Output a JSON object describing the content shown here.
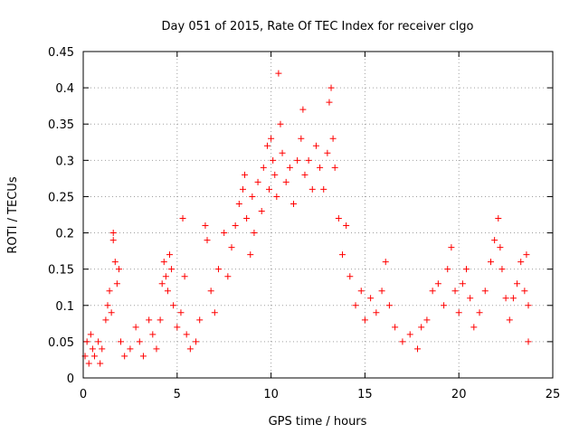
{
  "chart_data": {
    "type": "scatter",
    "title": "Day 051 of 2015, Rate Of TEC Index for receiver clgo",
    "xlabel": "GPS time / hours",
    "ylabel": "ROTI / TECUs",
    "xlim": [
      0,
      25
    ],
    "ylim": [
      0,
      0.45
    ],
    "x_ticks": [
      "0",
      "5",
      "10",
      "15",
      "20",
      "25"
    ],
    "y_ticks": [
      "0",
      "0.05",
      "0.1",
      "0.15",
      "0.2",
      "0.25",
      "0.3",
      "0.35",
      "0.4",
      "0.45"
    ],
    "grid": true,
    "marker": "+",
    "color": "#ff0000",
    "series": [
      {
        "points": [
          [
            0.1,
            0.03
          ],
          [
            0.2,
            0.05
          ],
          [
            0.3,
            0.02
          ],
          [
            0.4,
            0.06
          ],
          [
            0.5,
            0.04
          ],
          [
            0.6,
            0.03
          ],
          [
            0.8,
            0.05
          ],
          [
            0.9,
            0.02
          ],
          [
            1.0,
            0.04
          ],
          [
            1.2,
            0.08
          ],
          [
            1.3,
            0.1
          ],
          [
            1.4,
            0.12
          ],
          [
            1.5,
            0.09
          ],
          [
            1.6,
            0.19
          ],
          [
            1.6,
            0.2
          ],
          [
            1.7,
            0.16
          ],
          [
            1.8,
            0.13
          ],
          [
            1.9,
            0.15
          ],
          [
            2.0,
            0.05
          ],
          [
            2.2,
            0.03
          ],
          [
            2.5,
            0.04
          ],
          [
            2.8,
            0.07
          ],
          [
            3.0,
            0.05
          ],
          [
            3.2,
            0.03
          ],
          [
            3.5,
            0.08
          ],
          [
            3.7,
            0.06
          ],
          [
            3.9,
            0.04
          ],
          [
            4.1,
            0.08
          ],
          [
            4.2,
            0.13
          ],
          [
            4.3,
            0.16
          ],
          [
            4.4,
            0.14
          ],
          [
            4.5,
            0.12
          ],
          [
            4.6,
            0.17
          ],
          [
            4.7,
            0.15
          ],
          [
            4.8,
            0.1
          ],
          [
            5.0,
            0.07
          ],
          [
            5.2,
            0.09
          ],
          [
            5.3,
            0.22
          ],
          [
            5.4,
            0.14
          ],
          [
            5.5,
            0.06
          ],
          [
            5.7,
            0.04
          ],
          [
            6.0,
            0.05
          ],
          [
            6.2,
            0.08
          ],
          [
            6.5,
            0.21
          ],
          [
            6.6,
            0.19
          ],
          [
            6.8,
            0.12
          ],
          [
            7.0,
            0.09
          ],
          [
            7.2,
            0.15
          ],
          [
            7.5,
            0.2
          ],
          [
            7.7,
            0.14
          ],
          [
            7.9,
            0.18
          ],
          [
            8.1,
            0.21
          ],
          [
            8.3,
            0.24
          ],
          [
            8.5,
            0.26
          ],
          [
            8.6,
            0.28
          ],
          [
            8.7,
            0.22
          ],
          [
            8.9,
            0.17
          ],
          [
            9.0,
            0.25
          ],
          [
            9.1,
            0.2
          ],
          [
            9.3,
            0.27
          ],
          [
            9.5,
            0.23
          ],
          [
            9.6,
            0.29
          ],
          [
            9.8,
            0.32
          ],
          [
            9.9,
            0.26
          ],
          [
            10.0,
            0.33
          ],
          [
            10.1,
            0.3
          ],
          [
            10.2,
            0.28
          ],
          [
            10.3,
            0.25
          ],
          [
            10.4,
            0.42
          ],
          [
            10.5,
            0.35
          ],
          [
            10.6,
            0.31
          ],
          [
            10.8,
            0.27
          ],
          [
            11.0,
            0.29
          ],
          [
            11.2,
            0.24
          ],
          [
            11.4,
            0.3
          ],
          [
            11.6,
            0.33
          ],
          [
            11.7,
            0.37
          ],
          [
            11.8,
            0.28
          ],
          [
            12.0,
            0.3
          ],
          [
            12.2,
            0.26
          ],
          [
            12.4,
            0.32
          ],
          [
            12.6,
            0.29
          ],
          [
            12.8,
            0.26
          ],
          [
            13.0,
            0.31
          ],
          [
            13.1,
            0.38
          ],
          [
            13.2,
            0.4
          ],
          [
            13.3,
            0.33
          ],
          [
            13.4,
            0.29
          ],
          [
            13.6,
            0.22
          ],
          [
            13.8,
            0.17
          ],
          [
            14.0,
            0.21
          ],
          [
            14.2,
            0.14
          ],
          [
            14.5,
            0.1
          ],
          [
            14.8,
            0.12
          ],
          [
            15.0,
            0.08
          ],
          [
            15.3,
            0.11
          ],
          [
            15.6,
            0.09
          ],
          [
            15.9,
            0.12
          ],
          [
            16.1,
            0.16
          ],
          [
            16.3,
            0.1
          ],
          [
            16.6,
            0.07
          ],
          [
            17.0,
            0.05
          ],
          [
            17.4,
            0.06
          ],
          [
            17.8,
            0.04
          ],
          [
            18.0,
            0.07
          ],
          [
            18.3,
            0.08
          ],
          [
            18.6,
            0.12
          ],
          [
            18.9,
            0.13
          ],
          [
            19.2,
            0.1
          ],
          [
            19.4,
            0.15
          ],
          [
            19.6,
            0.18
          ],
          [
            19.8,
            0.12
          ],
          [
            20.0,
            0.09
          ],
          [
            20.2,
            0.13
          ],
          [
            20.4,
            0.15
          ],
          [
            20.6,
            0.11
          ],
          [
            20.8,
            0.07
          ],
          [
            21.1,
            0.09
          ],
          [
            21.4,
            0.12
          ],
          [
            21.7,
            0.16
          ],
          [
            21.9,
            0.19
          ],
          [
            22.1,
            0.22
          ],
          [
            22.2,
            0.18
          ],
          [
            22.3,
            0.15
          ],
          [
            22.5,
            0.11
          ],
          [
            22.7,
            0.08
          ],
          [
            22.9,
            0.11
          ],
          [
            23.1,
            0.13
          ],
          [
            23.3,
            0.16
          ],
          [
            23.5,
            0.12
          ],
          [
            23.6,
            0.17
          ],
          [
            23.7,
            0.1
          ],
          [
            23.7,
            0.05
          ]
        ]
      }
    ]
  }
}
